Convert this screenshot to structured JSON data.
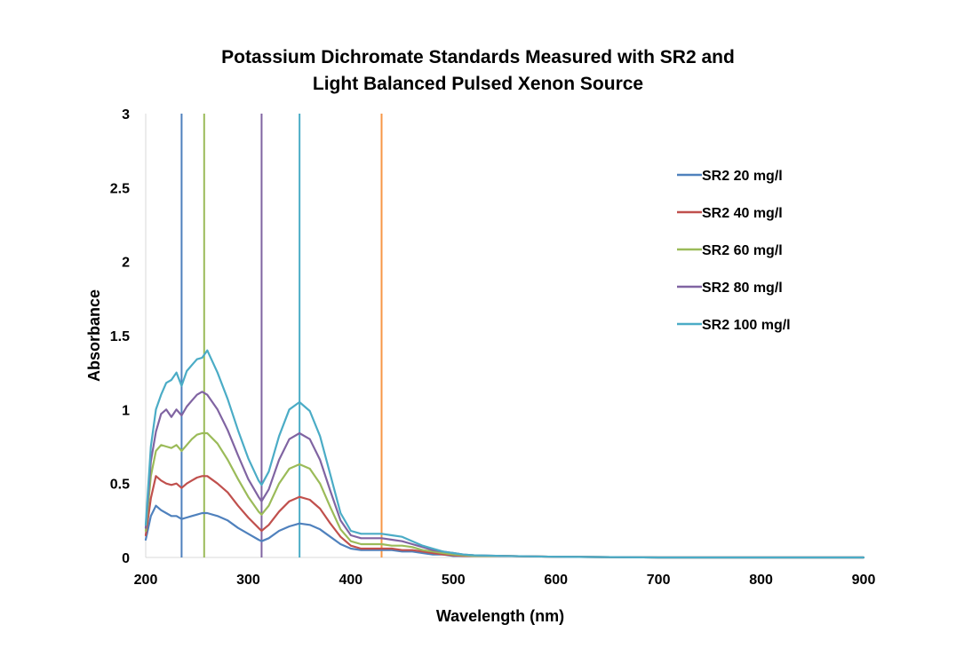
{
  "chart_data": {
    "type": "line",
    "title": [
      "Potassium Dichromate Standards Measured with SR2 and",
      "Light Balanced Pulsed Xenon Source"
    ],
    "xlabel": "Wavelength (nm)",
    "ylabel": "Absorbance",
    "xlim": [
      200,
      900
    ],
    "ylim": [
      0,
      3
    ],
    "x_ticks": [
      200,
      300,
      400,
      500,
      600,
      700,
      800,
      900
    ],
    "y_ticks": [
      0,
      0.5,
      1,
      1.5,
      2,
      2.5,
      3
    ],
    "x_tick_labels": [
      "200",
      "300",
      "400",
      "500",
      "600",
      "700",
      "800",
      "900"
    ],
    "y_tick_labels": [
      "0",
      "0.5",
      "1",
      "1.5",
      "2",
      "2.5",
      "3"
    ],
    "grid": false,
    "legend_position": "right",
    "x": [
      200,
      205,
      210,
      215,
      220,
      225,
      230,
      235,
      240,
      245,
      250,
      255,
      260,
      270,
      280,
      290,
      300,
      310,
      313,
      320,
      330,
      340,
      350,
      360,
      370,
      380,
      390,
      400,
      410,
      420,
      430,
      440,
      450,
      460,
      470,
      480,
      490,
      500,
      510,
      520,
      550,
      600,
      700,
      800,
      900
    ],
    "series": [
      {
        "name": "SR2 20 mg/l",
        "color": "#4f81bd",
        "values": [
          0.12,
          0.28,
          0.35,
          0.32,
          0.3,
          0.28,
          0.28,
          0.26,
          0.27,
          0.28,
          0.29,
          0.3,
          0.3,
          0.28,
          0.25,
          0.2,
          0.16,
          0.12,
          0.11,
          0.13,
          0.18,
          0.21,
          0.23,
          0.22,
          0.19,
          0.14,
          0.09,
          0.06,
          0.05,
          0.05,
          0.05,
          0.05,
          0.04,
          0.04,
          0.03,
          0.02,
          0.02,
          0.01,
          0.01,
          0.01,
          0.01,
          0.005,
          0.0,
          0.0,
          0.0
        ]
      },
      {
        "name": "SR2 40 mg/l",
        "color": "#c0504d",
        "values": [
          0.15,
          0.4,
          0.55,
          0.52,
          0.5,
          0.49,
          0.5,
          0.47,
          0.5,
          0.52,
          0.54,
          0.55,
          0.55,
          0.5,
          0.44,
          0.35,
          0.27,
          0.2,
          0.18,
          0.22,
          0.31,
          0.38,
          0.41,
          0.39,
          0.33,
          0.23,
          0.14,
          0.08,
          0.06,
          0.06,
          0.06,
          0.06,
          0.05,
          0.05,
          0.04,
          0.03,
          0.02,
          0.015,
          0.01,
          0.01,
          0.01,
          0.005,
          0.0,
          0.0,
          0.0
        ]
      },
      {
        "name": "SR2 60 mg/l",
        "color": "#9bbb59",
        "values": [
          0.18,
          0.55,
          0.72,
          0.76,
          0.75,
          0.74,
          0.76,
          0.72,
          0.76,
          0.8,
          0.83,
          0.84,
          0.84,
          0.77,
          0.66,
          0.53,
          0.41,
          0.31,
          0.29,
          0.35,
          0.5,
          0.6,
          0.63,
          0.6,
          0.5,
          0.34,
          0.19,
          0.11,
          0.09,
          0.09,
          0.09,
          0.08,
          0.08,
          0.07,
          0.05,
          0.04,
          0.03,
          0.02,
          0.015,
          0.01,
          0.01,
          0.005,
          0.0,
          0.0,
          0.0
        ]
      },
      {
        "name": "SR2 80 mg/l",
        "color": "#8064a2",
        "values": [
          0.2,
          0.65,
          0.85,
          0.97,
          1.0,
          0.95,
          1.0,
          0.96,
          1.02,
          1.06,
          1.1,
          1.12,
          1.1,
          1.0,
          0.86,
          0.69,
          0.53,
          0.41,
          0.38,
          0.46,
          0.66,
          0.8,
          0.84,
          0.8,
          0.66,
          0.45,
          0.25,
          0.15,
          0.13,
          0.13,
          0.13,
          0.12,
          0.11,
          0.09,
          0.07,
          0.05,
          0.04,
          0.03,
          0.02,
          0.015,
          0.01,
          0.005,
          0.0,
          0.0,
          0.0
        ]
      },
      {
        "name": "SR2 100 mg/l",
        "color": "#4bacc6",
        "values": [
          0.22,
          0.75,
          1.0,
          1.1,
          1.18,
          1.2,
          1.25,
          1.16,
          1.26,
          1.3,
          1.34,
          1.35,
          1.4,
          1.25,
          1.07,
          0.86,
          0.67,
          0.52,
          0.49,
          0.58,
          0.82,
          1.0,
          1.05,
          0.99,
          0.82,
          0.56,
          0.3,
          0.18,
          0.16,
          0.16,
          0.16,
          0.15,
          0.14,
          0.11,
          0.08,
          0.06,
          0.04,
          0.03,
          0.02,
          0.015,
          0.01,
          0.005,
          0.0,
          0.0,
          0.0
        ]
      }
    ],
    "vertical_lines": [
      {
        "x": 235,
        "color": "#4f81bd"
      },
      {
        "x": 257,
        "color": "#9bbb59"
      },
      {
        "x": 313,
        "color": "#8064a2"
      },
      {
        "x": 350,
        "color": "#4bacc6"
      },
      {
        "x": 430,
        "color": "#f79646"
      }
    ]
  }
}
